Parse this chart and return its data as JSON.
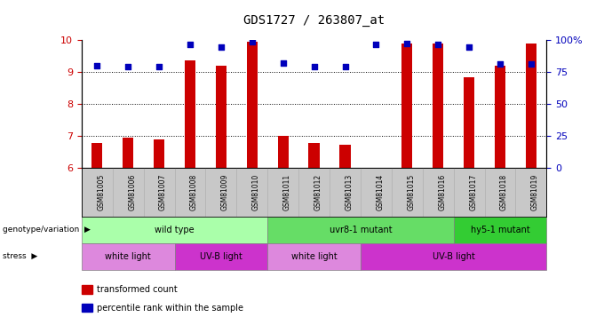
{
  "title": "GDS1727 / 263807_at",
  "samples": [
    "GSM81005",
    "GSM81006",
    "GSM81007",
    "GSM81008",
    "GSM81009",
    "GSM81010",
    "GSM81011",
    "GSM81012",
    "GSM81013",
    "GSM81014",
    "GSM81015",
    "GSM81016",
    "GSM81017",
    "GSM81018",
    "GSM81019"
  ],
  "bar_values": [
    6.8,
    6.95,
    6.9,
    9.35,
    9.2,
    9.95,
    7.0,
    6.78,
    6.72,
    6.0,
    9.9,
    9.9,
    8.85,
    9.2,
    9.9
  ],
  "dot_values": [
    9.2,
    9.18,
    9.18,
    9.85,
    9.78,
    9.95,
    9.28,
    9.18,
    9.18,
    9.85,
    9.9,
    9.85,
    9.78,
    9.25,
    9.25
  ],
  "ylim_left": [
    6,
    10
  ],
  "yticks_left": [
    6,
    7,
    8,
    9,
    10
  ],
  "yticks_right": [
    0,
    25,
    50,
    75,
    100
  ],
  "bar_color": "#CC0000",
  "dot_color": "#0000BB",
  "bg_color": "#ffffff",
  "xticklabel_bg": "#C8C8C8",
  "genotype_groups": [
    {
      "label": "wild type",
      "start": 0,
      "end": 6,
      "color": "#AAFFAA"
    },
    {
      "label": "uvr8-1 mutant",
      "start": 6,
      "end": 12,
      "color": "#66DD66"
    },
    {
      "label": "hy5-1 mutant",
      "start": 12,
      "end": 15,
      "color": "#33CC33"
    }
  ],
  "stress_groups": [
    {
      "label": "white light",
      "start": 0,
      "end": 3,
      "color": "#DD88DD"
    },
    {
      "label": "UV-B light",
      "start": 3,
      "end": 6,
      "color": "#CC33CC"
    },
    {
      "label": "white light",
      "start": 6,
      "end": 9,
      "color": "#DD88DD"
    },
    {
      "label": "UV-B light",
      "start": 9,
      "end": 15,
      "color": "#CC33CC"
    }
  ],
  "legend_labels": [
    "transformed count",
    "percentile rank within the sample"
  ],
  "legend_colors": [
    "#CC0000",
    "#0000BB"
  ],
  "title_fontsize": 10,
  "tick_fontsize": 7,
  "annotation_fontsize": 7,
  "label_fontsize": 7
}
